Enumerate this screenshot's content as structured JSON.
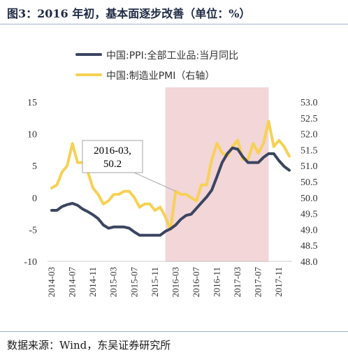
{
  "title": "图3：2016 年初，基本面逐步改善（单位：%）",
  "source": "数据来源：Wind，东吴证券研究所",
  "chart_data": {
    "type": "line",
    "x": [
      "2014-03",
      "2014-04",
      "2014-05",
      "2014-06",
      "2014-07",
      "2014-08",
      "2014-09",
      "2014-10",
      "2014-11",
      "2014-12",
      "2015-01",
      "2015-02",
      "2015-03",
      "2015-04",
      "2015-05",
      "2015-06",
      "2015-07",
      "2015-08",
      "2015-09",
      "2015-10",
      "2015-11",
      "2015-12",
      "2016-01",
      "2016-02",
      "2016-03",
      "2016-04",
      "2016-05",
      "2016-06",
      "2016-07",
      "2016-08",
      "2016-09",
      "2016-10",
      "2016-11",
      "2016-12",
      "2017-01",
      "2017-02",
      "2017-03",
      "2017-04",
      "2017-05",
      "2017-06",
      "2017-07",
      "2017-08",
      "2017-09",
      "2017-10",
      "2017-11",
      "2017-12",
      "2018-01"
    ],
    "x_tick_labels": [
      "2014-03",
      "2014-07",
      "2014-11",
      "2015-03",
      "2015-07",
      "2015-11",
      "2016-03",
      "2016-07",
      "2016-11",
      "2017-03",
      "2017-07",
      "2017-11"
    ],
    "series": [
      {
        "name": "中国:PPI:全部工业品:当月同比",
        "axis": "left",
        "color": "#3b4560",
        "values": [
          -2.0,
          -2.0,
          -1.4,
          -1.1,
          -0.9,
          -1.2,
          -1.8,
          -2.2,
          -2.7,
          -3.3,
          -4.3,
          -4.8,
          -4.6,
          -4.6,
          -4.6,
          -4.8,
          -5.4,
          -5.9,
          -5.9,
          -5.9,
          -5.9,
          -5.9,
          -5.3,
          -4.9,
          -4.3,
          -3.4,
          -2.8,
          -2.6,
          -1.7,
          -0.8,
          0.1,
          1.2,
          3.3,
          5.5,
          6.9,
          7.8,
          7.6,
          6.4,
          5.5,
          5.5,
          5.5,
          6.3,
          6.9,
          6.9,
          5.8,
          4.9,
          4.3
        ]
      },
      {
        "name": "中国:制造业PMI（右轴）",
        "axis": "right",
        "color": "#f7d155",
        "values": [
          50.3,
          50.4,
          50.8,
          51.0,
          51.7,
          51.1,
          51.1,
          50.8,
          50.3,
          50.1,
          49.8,
          49.9,
          50.1,
          50.1,
          50.2,
          50.2,
          50.0,
          49.7,
          49.8,
          49.8,
          49.6,
          49.7,
          49.4,
          49.0,
          50.2,
          50.1,
          50.1,
          50.0,
          49.9,
          50.4,
          50.4,
          51.2,
          51.7,
          51.4,
          51.3,
          51.6,
          51.8,
          51.2,
          51.2,
          51.7,
          51.4,
          51.7,
          52.4,
          51.6,
          51.8,
          51.6,
          51.3
        ]
      }
    ],
    "y_left": {
      "min": -10,
      "max": 15,
      "ticks": [
        "15",
        "10",
        "5",
        "0",
        "-5",
        "-10"
      ]
    },
    "y_right": {
      "min": 48.0,
      "max": 53.0,
      "ticks": [
        "53.0",
        "52.5",
        "52.0",
        "51.5",
        "51.0",
        "50.5",
        "50.0",
        "49.5",
        "49.0",
        "48.5",
        "48.0"
      ]
    },
    "shaded_region": {
      "from": "2016-01",
      "to": "2017-09",
      "color": "#f2d6d8"
    },
    "annotation": {
      "text_line1": "2016-03,",
      "text_line2": "50.2",
      "target": "2016-03"
    },
    "legend_position": "top",
    "grid": false
  }
}
